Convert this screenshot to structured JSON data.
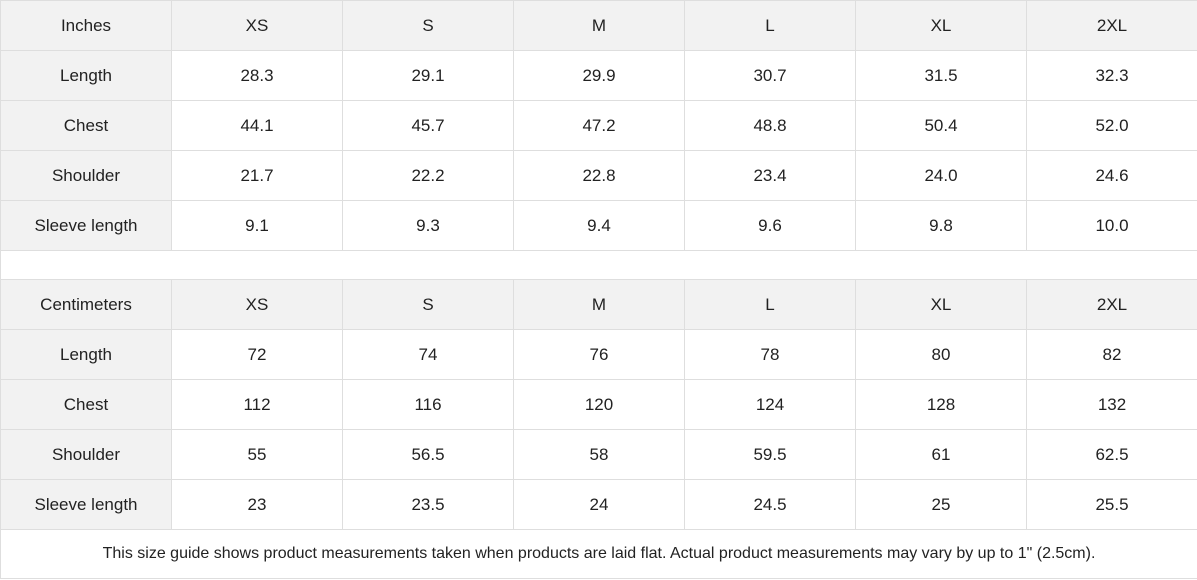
{
  "tables": [
    {
      "unit_label": "Inches",
      "sizes": [
        "XS",
        "S",
        "M",
        "L",
        "XL",
        "2XL"
      ],
      "rows": [
        {
          "label": "Length",
          "values": [
            "28.3",
            "29.1",
            "29.9",
            "30.7",
            "31.5",
            "32.3"
          ]
        },
        {
          "label": "Chest",
          "values": [
            "44.1",
            "45.7",
            "47.2",
            "48.8",
            "50.4",
            "52.0"
          ]
        },
        {
          "label": "Shoulder",
          "values": [
            "21.7",
            "22.2",
            "22.8",
            "23.4",
            "24.0",
            "24.6"
          ]
        },
        {
          "label": "Sleeve length",
          "values": [
            "9.1",
            "9.3",
            "9.4",
            "9.6",
            "9.8",
            "10.0"
          ]
        }
      ]
    },
    {
      "unit_label": "Centimeters",
      "sizes": [
        "XS",
        "S",
        "M",
        "L",
        "XL",
        "2XL"
      ],
      "rows": [
        {
          "label": "Length",
          "values": [
            "72",
            "74",
            "76",
            "78",
            "80",
            "82"
          ]
        },
        {
          "label": "Chest",
          "values": [
            "112",
            "116",
            "120",
            "124",
            "128",
            "132"
          ]
        },
        {
          "label": "Shoulder",
          "values": [
            "55",
            "56.5",
            "58",
            "59.5",
            "61",
            "62.5"
          ]
        },
        {
          "label": "Sleeve length",
          "values": [
            "23",
            "23.5",
            "24",
            "24.5",
            "25",
            "25.5"
          ]
        }
      ]
    }
  ],
  "note": "This size guide shows product measurements taken when products are laid flat.  Actual product measurements may vary by up to 1\" (2.5cm).",
  "colors": {
    "header_bg": "#f2f2f2",
    "border": "#dedede"
  }
}
